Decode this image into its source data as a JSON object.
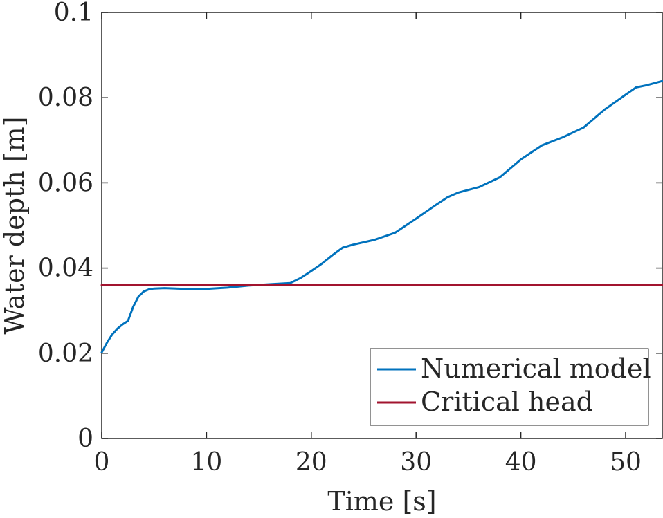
{
  "chart_data": {
    "type": "line",
    "xlabel": "Time [s]",
    "ylabel": "Water depth [m]",
    "xlim": [
      0,
      53.5
    ],
    "ylim": [
      0,
      0.1
    ],
    "xticks": [
      0,
      10,
      20,
      30,
      40,
      50
    ],
    "yticks": [
      0,
      0.02,
      0.04,
      0.06,
      0.08,
      0.1
    ],
    "xtick_labels": [
      "0",
      "10",
      "20",
      "30",
      "40",
      "50"
    ],
    "ytick_labels": [
      "0",
      "0.02",
      "0.04",
      "0.06",
      "0.08",
      "0.1"
    ],
    "grid": false,
    "legend_position": "bottom-right",
    "series": [
      {
        "name": "Numerical model",
        "color": "#0072BD",
        "x": [
          0,
          0.5,
          1,
          1.5,
          2,
          2.5,
          3,
          3.5,
          4,
          4.5,
          5,
          6,
          8,
          10,
          12,
          14,
          16,
          18,
          19,
          20,
          21,
          22,
          23,
          24,
          26,
          28,
          30,
          32,
          33,
          34,
          36,
          38,
          40,
          42,
          44,
          46,
          48,
          50,
          51,
          52,
          53.5
        ],
        "y": [
          0.0202,
          0.0225,
          0.0244,
          0.0258,
          0.0268,
          0.0276,
          0.0309,
          0.0333,
          0.0345,
          0.035,
          0.0352,
          0.0353,
          0.0351,
          0.0351,
          0.0354,
          0.0359,
          0.0362,
          0.0365,
          0.0377,
          0.0393,
          0.041,
          0.043,
          0.0448,
          0.0455,
          0.0466,
          0.0483,
          0.0516,
          0.055,
          0.0566,
          0.0577,
          0.059,
          0.0613,
          0.0655,
          0.0688,
          0.0707,
          0.073,
          0.0772,
          0.0807,
          0.0824,
          0.0829,
          0.0839
        ]
      },
      {
        "name": "Critical head",
        "color": "#A2142F",
        "x": [
          0,
          53.5
        ],
        "y": [
          0.036,
          0.036
        ]
      }
    ]
  }
}
